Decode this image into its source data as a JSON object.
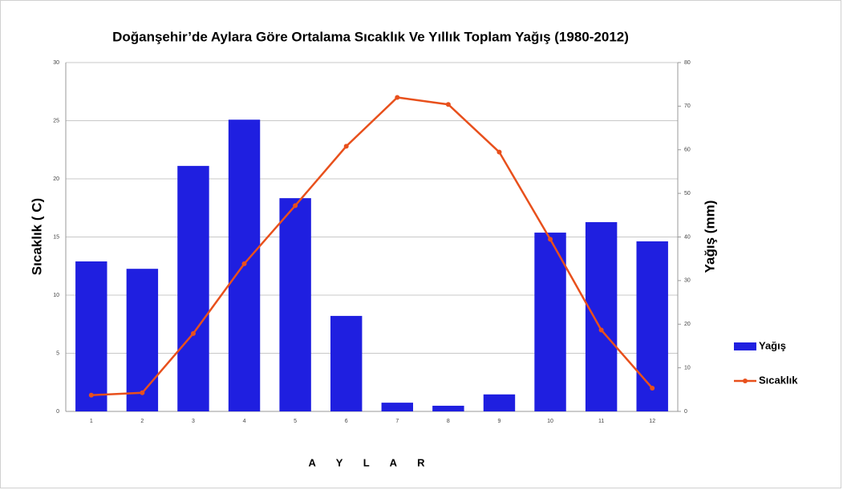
{
  "chart_data": {
    "type": "combo",
    "title": "Doğanşehir’de Aylara Göre Ortalama Sıcaklık Ve Yıllık Toplam Yağış (1980-2012)",
    "x_label": "A Y L A R",
    "y_label": "Sıcaklık ( C)",
    "y2_label": "Yağış (mm)",
    "categories": [
      "1",
      "2",
      "3",
      "4",
      "5",
      "6",
      "7",
      "8",
      "9",
      "10",
      "11",
      "12"
    ],
    "series": [
      {
        "name": "Yağış",
        "type": "bar",
        "axis": "y2",
        "color": "#1f1fe0",
        "values": [
          34.4,
          32.7,
          56.3,
          66.9,
          48.9,
          21.9,
          2.0,
          1.3,
          3.9,
          41.0,
          43.4,
          39.0
        ]
      },
      {
        "name": "Sıcaklık",
        "type": "line",
        "color": "#e8501c",
        "values": [
          1.4,
          1.6,
          6.7,
          12.7,
          17.7,
          22.8,
          27.0,
          26.4,
          22.3,
          14.8,
          7.0,
          2.0
        ]
      }
    ],
    "ylim": [
      0,
      30
    ],
    "yticks": [
      0,
      5,
      10,
      15,
      20,
      25,
      30
    ],
    "y2lim": [
      0,
      80
    ],
    "y2ticks": [
      0,
      10,
      20,
      30,
      40,
      50,
      60,
      70,
      80
    ],
    "grid": true,
    "legend": "right"
  }
}
